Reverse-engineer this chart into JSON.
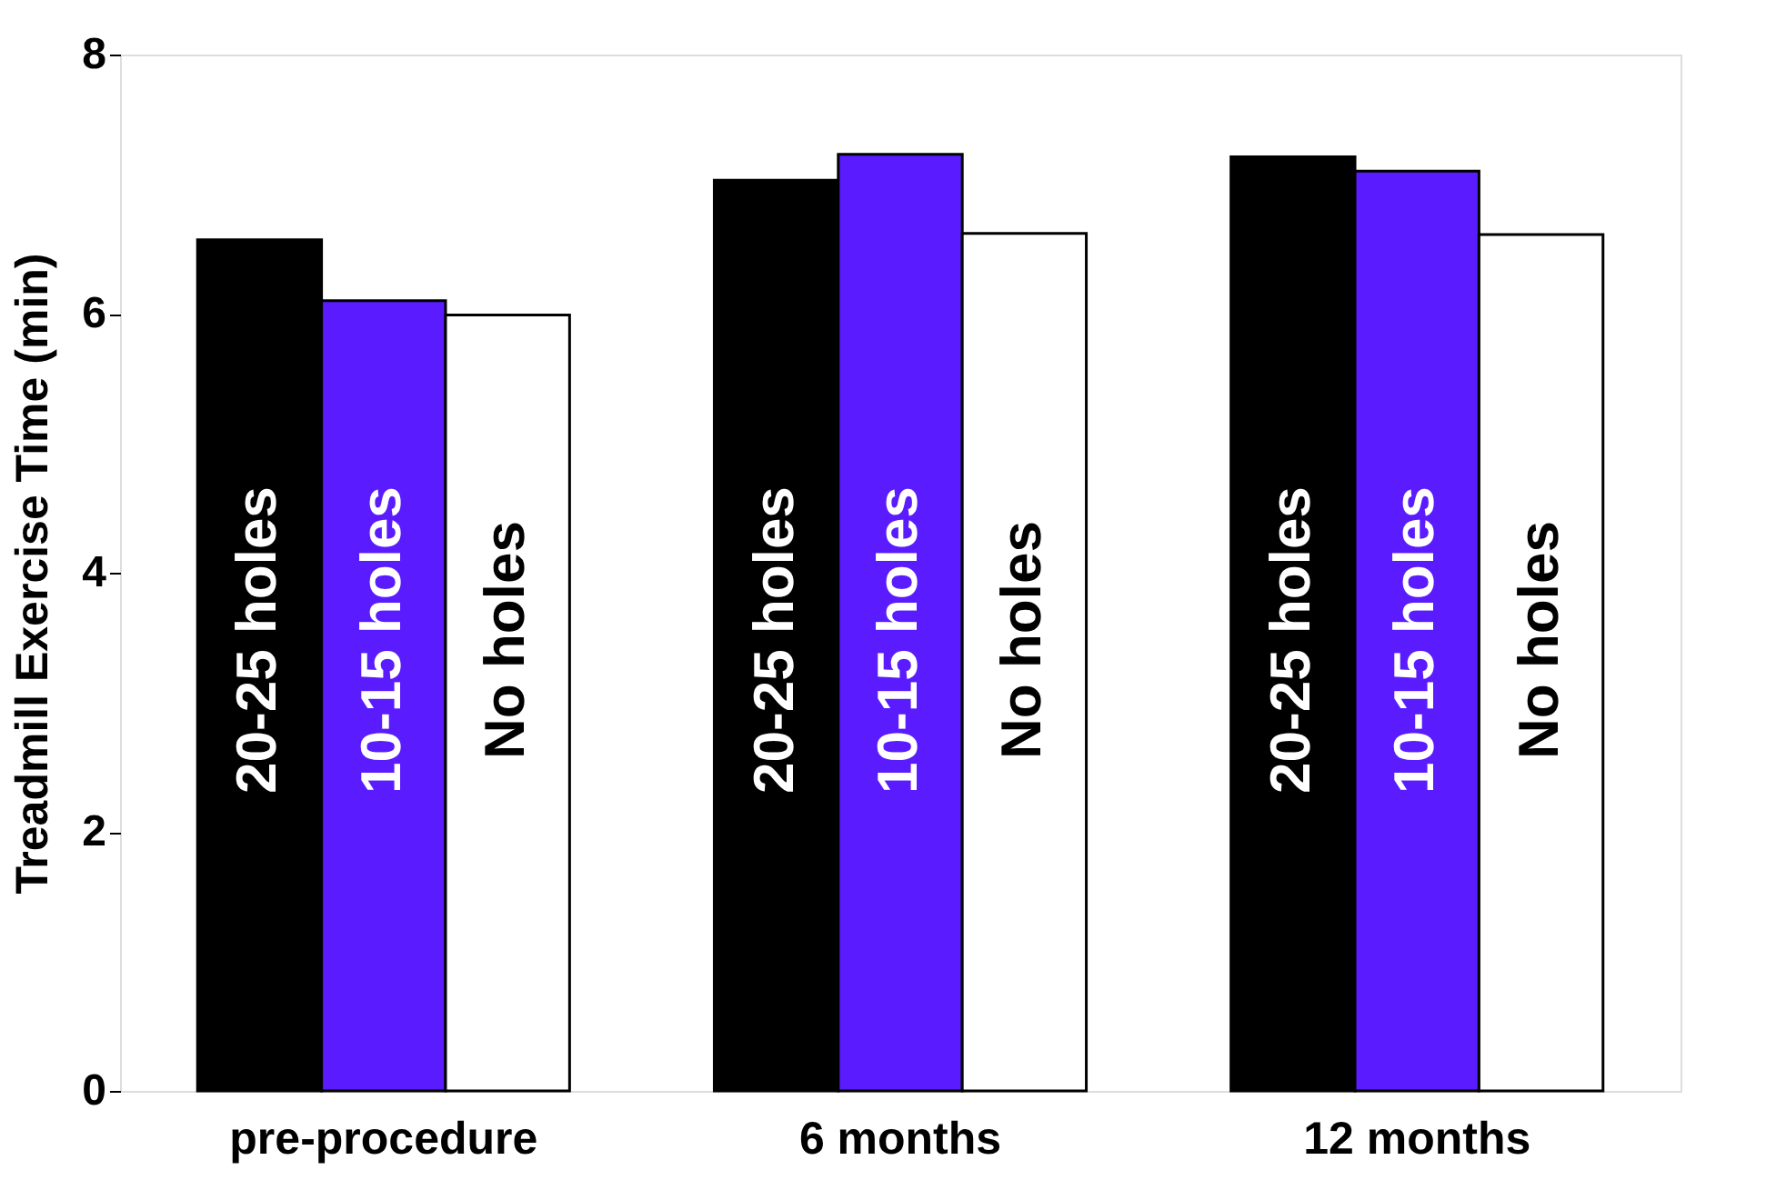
{
  "chart_data": {
    "type": "bar",
    "ylabel": "Treadmill Exercise Time (min)",
    "categories": [
      "pre-procedure",
      "6 months",
      "12 months"
    ],
    "series": [
      {
        "name": "20-25 holes",
        "color": "#000000",
        "values": [
          6.57,
          7.03,
          7.21
        ]
      },
      {
        "name": "10-15 holes",
        "color": "#5a1cff",
        "values": [
          6.1,
          7.23,
          7.1
        ]
      },
      {
        "name": "No holes",
        "color": "#ffffff",
        "values": [
          5.99,
          6.62,
          6.61
        ]
      }
    ],
    "ylim": [
      0,
      8
    ],
    "yticks": [
      0,
      2,
      4,
      6,
      8
    ],
    "grid": false,
    "legend": false
  }
}
